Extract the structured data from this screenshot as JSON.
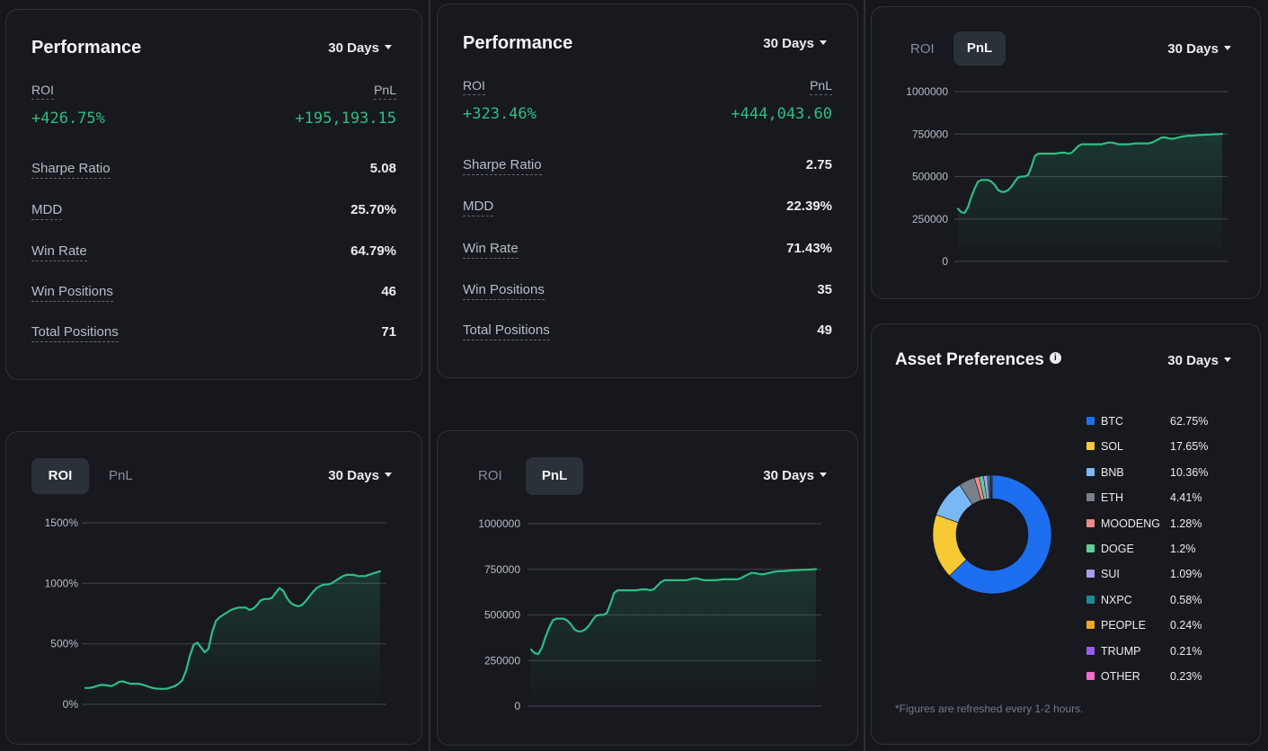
{
  "performance_left": {
    "title": "Performance",
    "period": "30 Days",
    "roi_label": "ROI",
    "pnl_label": "PnL",
    "roi_value": "+426.75%",
    "pnl_value": "+195,193.15",
    "stats": [
      {
        "label": "Sharpe Ratio",
        "value": "5.08"
      },
      {
        "label": "MDD",
        "value": "25.70%"
      },
      {
        "label": "Win Rate",
        "value": "64.79%"
      },
      {
        "label": "Win Positions",
        "value": "46"
      },
      {
        "label": "Total Positions",
        "value": "71"
      }
    ]
  },
  "performance_mid": {
    "title": "Performance",
    "period": "30 Days",
    "roi_label": "ROI",
    "pnl_label": "PnL",
    "roi_value": "+323.46%",
    "pnl_value": "+444,043.60",
    "stats": [
      {
        "label": "Sharpe Ratio",
        "value": "2.75"
      },
      {
        "label": "MDD",
        "value": "22.39%"
      },
      {
        "label": "Win Rate",
        "value": "71.43%"
      },
      {
        "label": "Win Positions",
        "value": "35"
      },
      {
        "label": "Total Positions",
        "value": "49"
      }
    ]
  },
  "roi_chart_card": {
    "tabs": [
      "ROI",
      "PnL"
    ],
    "active_tab": "ROI",
    "period": "30 Days"
  },
  "pnl_chart_card_mid": {
    "tabs": [
      "ROI",
      "PnL"
    ],
    "active_tab": "PnL",
    "period": "30 Days"
  },
  "pnl_chart_card_right": {
    "tabs": [
      "ROI",
      "PnL"
    ],
    "active_tab": "PnL",
    "period": "30 Days"
  },
  "asset_preferences": {
    "title": "Asset Preferences",
    "period": "30 Days",
    "note": "*Figures are refreshed every 1-2 hours."
  },
  "colors": {
    "line": "#2ebd85",
    "background": "#15171c",
    "card": "#17191e"
  },
  "chart_data": [
    {
      "type": "line",
      "ylim": [
        0,
        1500
      ],
      "yticks": [
        0,
        500,
        1000,
        1500
      ],
      "ytick_labels": [
        "0%",
        "500%",
        "1000%",
        "1500%"
      ],
      "x": [
        0,
        1,
        2,
        3,
        4,
        5,
        6,
        7,
        8,
        9,
        10,
        11,
        12,
        13,
        14,
        15,
        16,
        17,
        18,
        19,
        20,
        21,
        22,
        23,
        24,
        25,
        26,
        27,
        28,
        29,
        30,
        31,
        32,
        33,
        34,
        35,
        36,
        37,
        38,
        39,
        40,
        41,
        42,
        43,
        44,
        45,
        46,
        47,
        48,
        49,
        50,
        51,
        52,
        53,
        54,
        55,
        56,
        57,
        58,
        59,
        60,
        61,
        62,
        63,
        64,
        65,
        66,
        67,
        68,
        69,
        70,
        71,
        72,
        73,
        74,
        75,
        76,
        77,
        78,
        79
      ],
      "values": [
        135,
        135,
        140,
        150,
        160,
        160,
        155,
        150,
        165,
        185,
        190,
        180,
        170,
        170,
        170,
        165,
        155,
        145,
        135,
        130,
        128,
        128,
        130,
        140,
        150,
        170,
        200,
        280,
        400,
        490,
        510,
        470,
        430,
        460,
        600,
        690,
        720,
        740,
        760,
        780,
        790,
        800,
        800,
        800,
        780,
        790,
        820,
        860,
        870,
        870,
        880,
        920,
        960,
        940,
        880,
        840,
        820,
        810,
        820,
        850,
        890,
        930,
        960,
        980,
        990,
        990,
        1000,
        1020,
        1040,
        1060,
        1070,
        1070,
        1070,
        1060,
        1060,
        1060,
        1070,
        1080,
        1090,
        1100
      ]
    },
    {
      "type": "line",
      "ylim": [
        0,
        1000000
      ],
      "yticks": [
        0,
        250000,
        500000,
        750000,
        1000000
      ],
      "ytick_labels": [
        "0",
        "250000",
        "500000",
        "750000",
        "1000000"
      ],
      "x": [
        0,
        1,
        2,
        3,
        4,
        5,
        6,
        7,
        8,
        9,
        10,
        11,
        12,
        13,
        14,
        15,
        16,
        17,
        18,
        19,
        20,
        21,
        22,
        23,
        24,
        25,
        26,
        27,
        28,
        29,
        30,
        31,
        32,
        33,
        34,
        35,
        36,
        37,
        38,
        39,
        40,
        41,
        42,
        43,
        44,
        45,
        46,
        47,
        48,
        49,
        50,
        51,
        52,
        53,
        54,
        55,
        56,
        57,
        58,
        59,
        60,
        61,
        62,
        63,
        64,
        65,
        66,
        67,
        68,
        69,
        70,
        71,
        72,
        73,
        74,
        75,
        76,
        77,
        78,
        79
      ],
      "values": [
        310000,
        290000,
        285000,
        320000,
        380000,
        430000,
        470000,
        480000,
        480000,
        480000,
        470000,
        450000,
        420000,
        410000,
        410000,
        420000,
        440000,
        470000,
        495000,
        500000,
        500000,
        510000,
        560000,
        620000,
        635000,
        635000,
        635000,
        635000,
        635000,
        635000,
        638000,
        640000,
        640000,
        635000,
        640000,
        660000,
        680000,
        690000,
        690000,
        690000,
        690000,
        690000,
        690000,
        690000,
        695000,
        700000,
        700000,
        695000,
        690000,
        690000,
        690000,
        690000,
        692000,
        695000,
        695000,
        695000,
        695000,
        695000,
        700000,
        710000,
        720000,
        730000,
        730000,
        725000,
        722000,
        725000,
        730000,
        735000,
        738000,
        740000,
        740000,
        742000,
        744000,
        745000,
        746000,
        747000,
        748000,
        749000,
        750000,
        751000
      ]
    },
    {
      "type": "line",
      "ylim": [
        0,
        1000000
      ],
      "yticks": [
        0,
        250000,
        500000,
        750000,
        1000000
      ],
      "ytick_labels": [
        "0",
        "250000",
        "500000",
        "750000",
        "1000000"
      ],
      "x": [
        0,
        1,
        2,
        3,
        4,
        5,
        6,
        7,
        8,
        9,
        10,
        11,
        12,
        13,
        14,
        15,
        16,
        17,
        18,
        19,
        20,
        21,
        22,
        23,
        24,
        25,
        26,
        27,
        28,
        29,
        30,
        31,
        32,
        33,
        34,
        35,
        36,
        37,
        38,
        39,
        40,
        41,
        42,
        43,
        44,
        45,
        46,
        47,
        48,
        49,
        50,
        51,
        52,
        53,
        54,
        55,
        56,
        57,
        58,
        59,
        60,
        61,
        62,
        63,
        64,
        65,
        66,
        67,
        68,
        69,
        70,
        71,
        72,
        73,
        74,
        75,
        76,
        77,
        78,
        79
      ],
      "values": [
        310000,
        290000,
        285000,
        320000,
        380000,
        430000,
        470000,
        480000,
        480000,
        480000,
        470000,
        450000,
        420000,
        410000,
        410000,
        420000,
        440000,
        470000,
        495000,
        500000,
        500000,
        510000,
        560000,
        620000,
        635000,
        635000,
        635000,
        635000,
        635000,
        635000,
        638000,
        640000,
        640000,
        635000,
        640000,
        660000,
        680000,
        690000,
        690000,
        690000,
        690000,
        690000,
        690000,
        690000,
        695000,
        700000,
        700000,
        695000,
        690000,
        690000,
        690000,
        690000,
        692000,
        695000,
        695000,
        695000,
        695000,
        695000,
        700000,
        710000,
        720000,
        730000,
        730000,
        725000,
        722000,
        725000,
        730000,
        735000,
        738000,
        740000,
        740000,
        742000,
        744000,
        745000,
        746000,
        747000,
        748000,
        749000,
        750000,
        751000
      ]
    },
    {
      "type": "pie",
      "donut": true,
      "slices": [
        {
          "label": "BTC",
          "value": 62.75,
          "display": "62.75%",
          "color": "#1e6ff0"
        },
        {
          "label": "SOL",
          "value": 17.65,
          "display": "17.65%",
          "color": "#f6c935"
        },
        {
          "label": "BNB",
          "value": 10.36,
          "display": "10.36%",
          "color": "#7ab8f5"
        },
        {
          "label": "ETH",
          "value": 4.41,
          "display": "4.41%",
          "color": "#7a8089"
        },
        {
          "label": "MOODENG",
          "value": 1.28,
          "display": "1.28%",
          "color": "#f08a8a"
        },
        {
          "label": "DOGE",
          "value": 1.2,
          "display": "1.2%",
          "color": "#5fcf95"
        },
        {
          "label": "SUI",
          "value": 1.09,
          "display": "1.09%",
          "color": "#a99cf0"
        },
        {
          "label": "NXPC",
          "value": 0.58,
          "display": "0.58%",
          "color": "#1e8a96"
        },
        {
          "label": "PEOPLE",
          "value": 0.24,
          "display": "0.24%",
          "color": "#f5a623"
        },
        {
          "label": "TRUMP",
          "value": 0.21,
          "display": "0.21%",
          "color": "#9a5cf0"
        },
        {
          "label": "OTHER",
          "value": 0.23,
          "display": "0.23%",
          "color": "#f06ad0"
        }
      ]
    }
  ]
}
